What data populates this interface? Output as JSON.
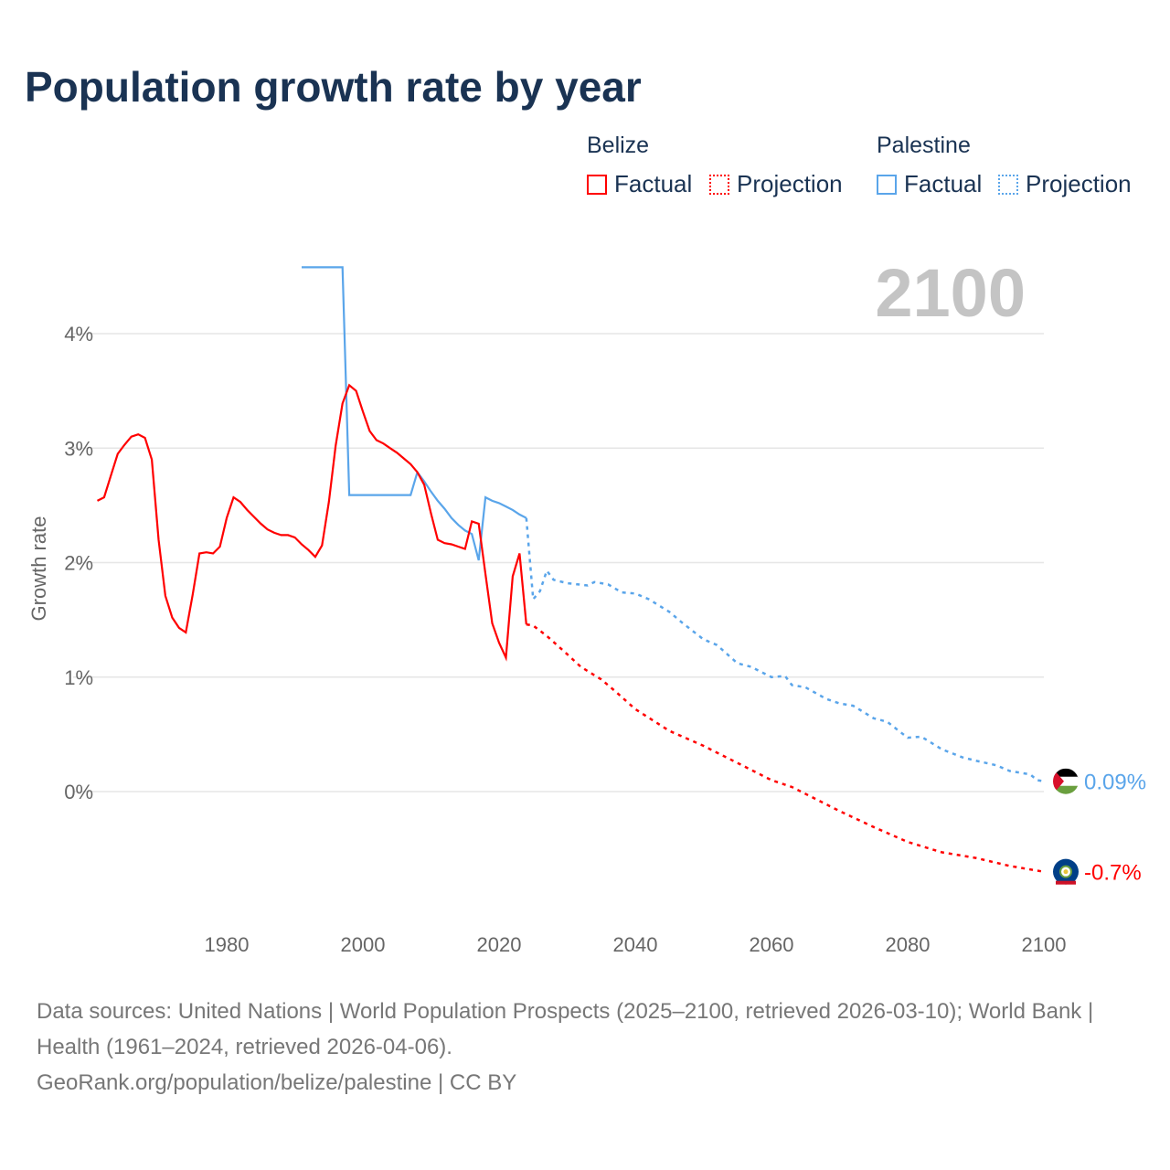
{
  "chart_data": {
    "type": "line",
    "title": "Population growth rate by year",
    "ylabel": "Growth rate",
    "xlabel": "",
    "xlim": [
      1960,
      2100
    ],
    "ylim": [
      -1.0,
      4.8
    ],
    "x_ticks": [
      1980,
      2000,
      2020,
      2040,
      2060,
      2080,
      2100
    ],
    "x_tick_labels": [
      "1980",
      "2000",
      "2020",
      "2040",
      "2060",
      "2080",
      "2100"
    ],
    "y_ticks": [
      0,
      1,
      2,
      3,
      4
    ],
    "y_tick_labels": [
      "0%",
      "1%",
      "2%",
      "3%",
      "4%"
    ],
    "grid": true,
    "current_year": "2100",
    "legend": {
      "placement": "top-right",
      "groups": [
        {
          "name": "Belize",
          "items": [
            "Factual",
            "Projection"
          ]
        },
        {
          "name": "Palestine",
          "items": [
            "Factual",
            "Projection"
          ]
        }
      ]
    },
    "series": [
      {
        "name": "Belize",
        "color": "#ff0000",
        "end_label": "-0.7%",
        "factual": [
          [
            1961,
            2.54
          ],
          [
            1962,
            2.57
          ],
          [
            1963,
            2.76
          ],
          [
            1964,
            2.95
          ],
          [
            1965,
            3.03
          ],
          [
            1966,
            3.1
          ],
          [
            1967,
            3.12
          ],
          [
            1968,
            3.09
          ],
          [
            1969,
            2.9
          ],
          [
            1970,
            2.2
          ],
          [
            1971,
            1.71
          ],
          [
            1972,
            1.52
          ],
          [
            1973,
            1.43
          ],
          [
            1974,
            1.39
          ],
          [
            1975,
            1.72
          ],
          [
            1976,
            2.08
          ],
          [
            1977,
            2.09
          ],
          [
            1978,
            2.08
          ],
          [
            1979,
            2.14
          ],
          [
            1980,
            2.39
          ],
          [
            1981,
            2.57
          ],
          [
            1982,
            2.53
          ],
          [
            1983,
            2.46
          ],
          [
            1984,
            2.4
          ],
          [
            1985,
            2.34
          ],
          [
            1986,
            2.29
          ],
          [
            1987,
            2.26
          ],
          [
            1988,
            2.24
          ],
          [
            1989,
            2.24
          ],
          [
            1990,
            2.22
          ],
          [
            1991,
            2.16
          ],
          [
            1992,
            2.11
          ],
          [
            1993,
            2.05
          ],
          [
            1994,
            2.15
          ],
          [
            1995,
            2.53
          ],
          [
            1996,
            3.02
          ],
          [
            1997,
            3.39
          ],
          [
            1998,
            3.55
          ],
          [
            1999,
            3.5
          ],
          [
            2000,
            3.32
          ],
          [
            2001,
            3.15
          ],
          [
            2002,
            3.07
          ],
          [
            2003,
            3.04
          ],
          [
            2004,
            3.0
          ],
          [
            2005,
            2.96
          ],
          [
            2006,
            2.91
          ],
          [
            2007,
            2.86
          ],
          [
            2008,
            2.79
          ],
          [
            2009,
            2.68
          ],
          [
            2010,
            2.43
          ],
          [
            2011,
            2.2
          ],
          [
            2012,
            2.17
          ],
          [
            2013,
            2.16
          ],
          [
            2014,
            2.14
          ],
          [
            2015,
            2.12
          ],
          [
            2016,
            2.36
          ],
          [
            2017,
            2.34
          ],
          [
            2018,
            1.9
          ],
          [
            2019,
            1.47
          ],
          [
            2020,
            1.3
          ],
          [
            2021,
            1.17
          ],
          [
            2022,
            1.88
          ],
          [
            2023,
            2.08
          ],
          [
            2024,
            1.46
          ]
        ],
        "projection": [
          [
            2024,
            1.46
          ],
          [
            2025,
            1.45
          ],
          [
            2027,
            1.36
          ],
          [
            2030,
            1.2
          ],
          [
            2032,
            1.09
          ],
          [
            2035,
            0.98
          ],
          [
            2037,
            0.88
          ],
          [
            2040,
            0.72
          ],
          [
            2045,
            0.53
          ],
          [
            2050,
            0.4
          ],
          [
            2055,
            0.25
          ],
          [
            2060,
            0.1
          ],
          [
            2063,
            0.04
          ],
          [
            2066,
            -0.05
          ],
          [
            2070,
            -0.17
          ],
          [
            2075,
            -0.31
          ],
          [
            2080,
            -0.44
          ],
          [
            2085,
            -0.53
          ],
          [
            2090,
            -0.58
          ],
          [
            2095,
            -0.65
          ],
          [
            2100,
            -0.7
          ]
        ]
      },
      {
        "name": "Palestine",
        "color": "#5aa5ea",
        "end_label": "0.09%",
        "factual": [
          [
            1991,
            4.58
          ],
          [
            1997,
            4.58
          ],
          [
            1998,
            2.59
          ],
          [
            2007,
            2.59
          ],
          [
            2008,
            2.79
          ],
          [
            2009,
            2.71
          ],
          [
            2010,
            2.62
          ],
          [
            2011,
            2.54
          ],
          [
            2012,
            2.47
          ],
          [
            2013,
            2.39
          ],
          [
            2014,
            2.33
          ],
          [
            2015,
            2.28
          ],
          [
            2016,
            2.25
          ],
          [
            2017,
            2.02
          ],
          [
            2018,
            2.57
          ],
          [
            2019,
            2.54
          ],
          [
            2020,
            2.52
          ],
          [
            2021,
            2.49
          ],
          [
            2022,
            2.46
          ],
          [
            2023,
            2.42
          ],
          [
            2024,
            2.39
          ]
        ],
        "projection": [
          [
            2024,
            2.39
          ],
          [
            2025,
            1.68
          ],
          [
            2026,
            1.75
          ],
          [
            2027,
            1.93
          ],
          [
            2028,
            1.85
          ],
          [
            2030,
            1.82
          ],
          [
            2033,
            1.8
          ],
          [
            2034,
            1.83
          ],
          [
            2036,
            1.81
          ],
          [
            2038,
            1.74
          ],
          [
            2040,
            1.73
          ],
          [
            2042,
            1.68
          ],
          [
            2045,
            1.57
          ],
          [
            2047,
            1.47
          ],
          [
            2050,
            1.33
          ],
          [
            2052,
            1.28
          ],
          [
            2055,
            1.12
          ],
          [
            2057,
            1.09
          ],
          [
            2060,
            1.0
          ],
          [
            2062,
            1.01
          ],
          [
            2063,
            0.93
          ],
          [
            2065,
            0.91
          ],
          [
            2068,
            0.81
          ],
          [
            2070,
            0.77
          ],
          [
            2072,
            0.75
          ],
          [
            2075,
            0.64
          ],
          [
            2077,
            0.61
          ],
          [
            2080,
            0.47
          ],
          [
            2082,
            0.48
          ],
          [
            2085,
            0.37
          ],
          [
            2088,
            0.3
          ],
          [
            2090,
            0.27
          ],
          [
            2093,
            0.23
          ],
          [
            2095,
            0.18
          ],
          [
            2098,
            0.15
          ],
          [
            2099,
            0.1
          ],
          [
            2100,
            0.09
          ]
        ]
      }
    ]
  },
  "footer": {
    "sources": "Data sources: United Nations | World Population Prospects (2025–2100, retrieved 2026-03-10); World Bank | Health (1961–2024, retrieved 2026-04-06).",
    "link": "GeoRank.org/population/belize/palestine | CC BY"
  }
}
